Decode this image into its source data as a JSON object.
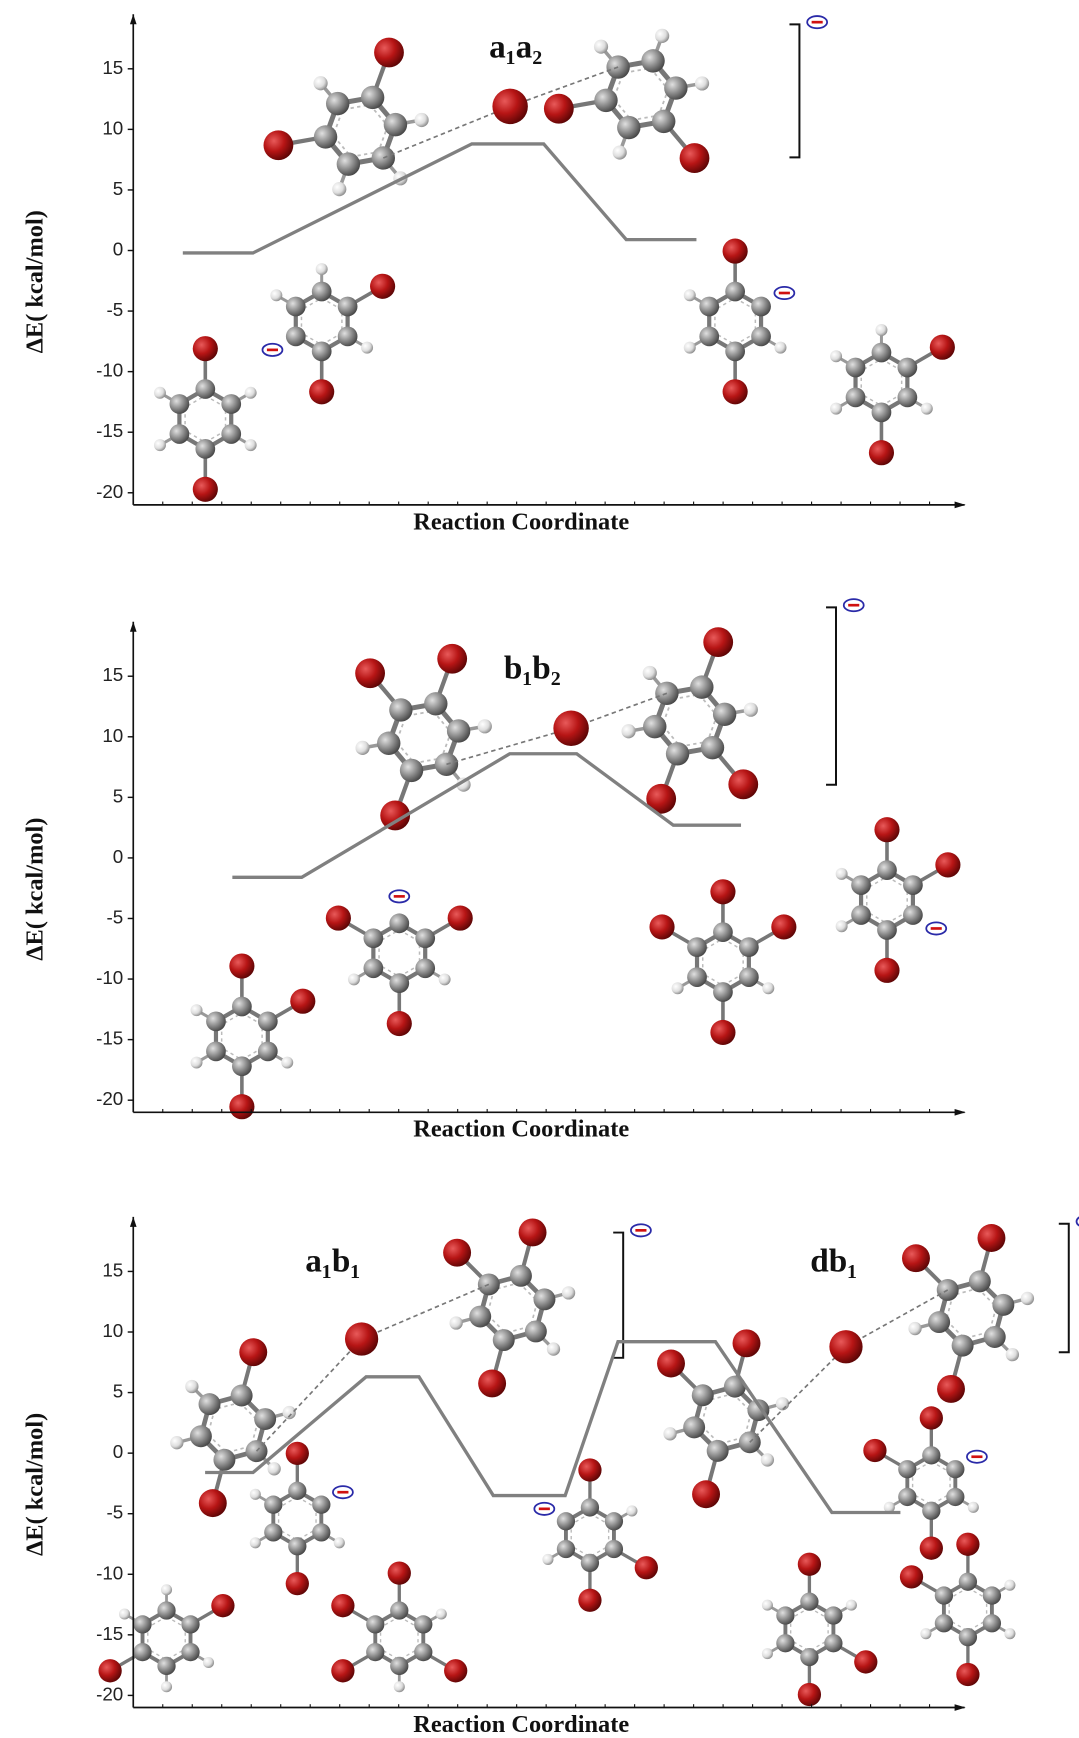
{
  "chart_data": [
    {
      "type": "line",
      "annotations": [
        "a₁a₂"
      ],
      "y_label": "ΔE( kcal/mol)",
      "x_label": "Reaction Coordinate",
      "x": [
        6,
        14.5,
        41,
        49.7,
        59.7,
        68.2
      ],
      "xlim": [
        0,
        100
      ],
      "series": [
        {
          "color": "#808080",
          "values": [
            -0.2,
            -0.2,
            8.8,
            8.8,
            0.9,
            0.9
          ]
        }
      ],
      "ylim": [
        -21,
        19.5
      ],
      "yticks": [
        15,
        10,
        5,
        0,
        -5,
        -10,
        -15,
        -20
      ]
    },
    {
      "type": "line",
      "annotations": [
        "b₁b₂"
      ],
      "y_label": "ΔE( kcal/mol)",
      "x_label": "Reaction Coordinate",
      "x": [
        12,
        20.4,
        45.6,
        53.7,
        65.4,
        73.6
      ],
      "xlim": [
        0,
        100
      ],
      "series": [
        {
          "color": "#808080",
          "values": [
            -1.6,
            -1.6,
            8.6,
            8.6,
            2.7,
            2.7
          ]
        }
      ],
      "ylim": [
        -21,
        19.5
      ],
      "yticks": [
        15,
        10,
        5,
        0,
        -5,
        -10,
        -15,
        -20
      ]
    },
    {
      "type": "line",
      "annotations": [
        "a₁b₁",
        "db₁"
      ],
      "y_label": "ΔE( kcal/mol)",
      "x_label": "Reaction Coordinate",
      "x": [
        8.7,
        14.5,
        28.2,
        34.6,
        43.6,
        52.3,
        58.7,
        70.5,
        84.6,
        92.9
      ],
      "xlim": [
        0,
        100
      ],
      "series": [
        {
          "color": "#808080",
          "values": [
            -1.6,
            -1.6,
            6.3,
            6.3,
            -3.5,
            -3.5,
            9.2,
            9.2,
            -4.9,
            -4.9
          ]
        }
      ],
      "ylim": [
        -21,
        19.5
      ],
      "yticks": [
        15,
        10,
        5,
        0,
        -5,
        -10,
        -15,
        -20
      ]
    }
  ]
}
